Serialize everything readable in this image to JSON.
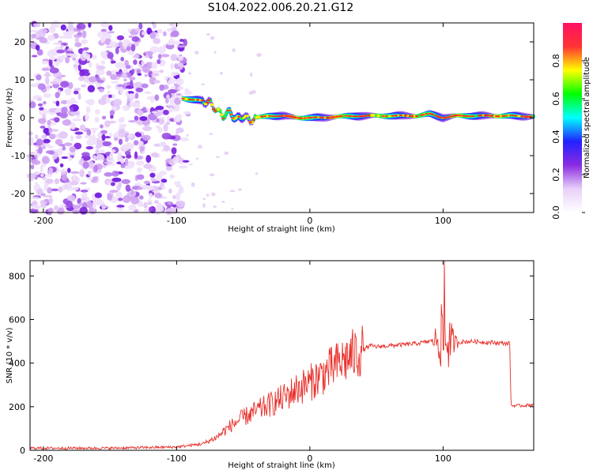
{
  "title": "S104.2022.006.20.21.G12",
  "chart_data": [
    {
      "type": "heatmap",
      "xlabel": "Height of straight line (km)",
      "ylabel": "Frequency (Hz)",
      "xlim": [
        -210,
        168
      ],
      "ylim": [
        -25,
        25
      ],
      "xticks": [
        -200,
        -100,
        0,
        100
      ],
      "yticks": [
        -20,
        -10,
        0,
        10,
        20
      ],
      "colorbar": {
        "label": "Normalized spectral amplitude",
        "range": [
          0,
          1
        ],
        "ticks": [
          "0.0",
          "0.2",
          "0.4",
          "0.6",
          "0.8"
        ],
        "colormap": [
          "#ffffff",
          "#e8d0f8",
          "#8a2be2",
          "#2222ff",
          "#00ffff",
          "#00ff00",
          "#ffff00",
          "#ff3333",
          "#ff1166"
        ]
      },
      "noise_region_x": [
        -210,
        -95
      ],
      "ridge": {
        "x": [
          -95,
          -85,
          -75,
          -70,
          -65,
          -60,
          -55,
          -50,
          -45,
          -40,
          -30,
          -20,
          -10,
          0,
          10,
          20,
          40,
          60,
          80,
          90,
          100,
          110,
          130,
          150,
          168
        ],
        "y": [
          5,
          4.8,
          4,
          2,
          0.5,
          1.5,
          -0.5,
          0.5,
          -0.8,
          0,
          0.5,
          0.5,
          0,
          0,
          0,
          0.3,
          0.5,
          0.5,
          0.5,
          1,
          0,
          0.5,
          0.5,
          0.5,
          0.3
        ]
      }
    },
    {
      "type": "line",
      "xlabel": "Height of straight line (km)",
      "ylabel": "SNR (10 * v/v)",
      "xlim": [
        -210,
        168
      ],
      "ylim": [
        0,
        870
      ],
      "xticks": [
        -200,
        -100,
        0,
        100
      ],
      "yticks": [
        0,
        200,
        400,
        600,
        800
      ],
      "color": "#e8302a",
      "envelope": {
        "x": [
          -210,
          -150,
          -100,
          -80,
          -70,
          -60,
          -50,
          -40,
          -30,
          -20,
          -10,
          0,
          10,
          20,
          30,
          40,
          45,
          50,
          60,
          80,
          90,
          95,
          100,
          105,
          110,
          120,
          150,
          151,
          160,
          168
        ],
        "y": [
          10,
          10,
          15,
          30,
          60,
          110,
          150,
          180,
          210,
          240,
          280,
          310,
          350,
          390,
          430,
          460,
          480,
          475,
          480,
          490,
          500,
          510,
          520,
          500,
          495,
          500,
          490,
          205,
          205,
          210
        ]
      },
      "spike_x": 101,
      "spike_y": 870
    }
  ]
}
